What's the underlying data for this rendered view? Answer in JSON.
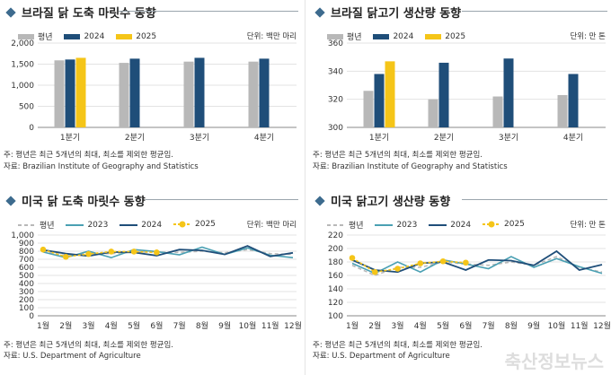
{
  "panels": [
    {
      "title": "브라질 닭 도축 마릿수 동향",
      "unit": "단위: 백만 마리",
      "legend": [
        "평년",
        "2024",
        "2025"
      ],
      "note1": "주: 평년은 최근 5개년의 최대, 최소를 제외한 평균임.",
      "note2": "자료: Brazilian Institute of Geography and Statistics"
    },
    {
      "title": "브라질 닭고기 생산량 동향",
      "unit": "단위: 만 톤",
      "legend": [
        "평년",
        "2024",
        "2025"
      ],
      "note1": "주: 평년은 최근 5개년의 최대, 최소를 제외한 평균임.",
      "note2": "자료: Brazilian Institute of Geography and Statistics"
    },
    {
      "title": "미국 닭 도축 마릿수 동향",
      "unit": "단위: 백만 마리",
      "legend": [
        "평년",
        "2023",
        "2024",
        "2025"
      ],
      "note1": "주: 평년은 최근 5개년의 최대, 최소를 제외한 평균임.",
      "note2": "자료: U.S. Department of Agriculture"
    },
    {
      "title": "미국 닭고기 생산량 동향",
      "unit": "단위: 만 톤",
      "legend": [
        "평년",
        "2023",
        "2024",
        "2025"
      ],
      "note1": "주: 평년은 최근 5개년의 최대, 최소를 제외한 평균임.",
      "note2": "자료: U.S. Department of Agriculture"
    }
  ],
  "watermark": "축산정보뉴스",
  "colors": {
    "normal": "#b8b8b8",
    "y2024": "#1f4e79",
    "y2025": "#f5c518",
    "y2023": "#4aa0b3",
    "title_marker": "#3d6b8e"
  },
  "chart_data": [
    {
      "type": "bar",
      "categories": [
        "1분기",
        "2분기",
        "3분기",
        "4분기"
      ],
      "ylim": [
        0,
        2000
      ],
      "yticks": [
        "0",
        "500",
        "1,000",
        "1,500",
        "2,000"
      ],
      "series": [
        {
          "name": "평년",
          "values": [
            1590,
            1530,
            1560,
            1560
          ]
        },
        {
          "name": "2024",
          "values": [
            1610,
            1630,
            1650,
            1630
          ]
        },
        {
          "name": "2025",
          "values": [
            1650,
            null,
            null,
            null
          ]
        }
      ]
    },
    {
      "type": "bar",
      "categories": [
        "1분기",
        "2분기",
        "3분기",
        "4분기"
      ],
      "ylim": [
        300,
        360
      ],
      "yticks": [
        "300",
        "320",
        "340",
        "360"
      ],
      "series": [
        {
          "name": "평년",
          "values": [
            326,
            320,
            322,
            323
          ]
        },
        {
          "name": "2024",
          "values": [
            338,
            346,
            349,
            338
          ]
        },
        {
          "name": "2025",
          "values": [
            347,
            null,
            null,
            null
          ]
        }
      ]
    },
    {
      "type": "line",
      "categories": [
        "1월",
        "2월",
        "3월",
        "4월",
        "5월",
        "6월",
        "7월",
        "8월",
        "9월",
        "10월",
        "11월",
        "12월"
      ],
      "ylim": [
        0,
        1000
      ],
      "yticks": [
        "0",
        "100",
        "200",
        "300",
        "400",
        "500",
        "600",
        "700",
        "800",
        "900",
        "1,000"
      ],
      "series": [
        {
          "name": "평년",
          "values": [
            795,
            745,
            770,
            770,
            790,
            790,
            785,
            800,
            780,
            820,
            770,
            760
          ]
        },
        {
          "name": "2023",
          "values": [
            790,
            720,
            800,
            720,
            820,
            795,
            755,
            850,
            760,
            840,
            750,
            720
          ]
        },
        {
          "name": "2024",
          "values": [
            815,
            770,
            740,
            790,
            785,
            745,
            820,
            810,
            760,
            865,
            735,
            780
          ]
        },
        {
          "name": "2025",
          "values": [
            820,
            730,
            765,
            795,
            795,
            785,
            null,
            null,
            null,
            null,
            null,
            null
          ]
        }
      ]
    },
    {
      "type": "line",
      "categories": [
        "1월",
        "2월",
        "3월",
        "4월",
        "5월",
        "6월",
        "7월",
        "8월",
        "9월",
        "10월",
        "11월",
        "12월"
      ],
      "ylim": [
        100,
        220
      ],
      "yticks": [
        "100",
        "120",
        "140",
        "160",
        "180",
        "200",
        "220"
      ],
      "series": [
        {
          "name": "평년",
          "values": [
            175,
            160,
            172,
            172,
            180,
            177,
            175,
            180,
            175,
            188,
            172,
            165
          ]
        },
        {
          "name": "2023",
          "values": [
            178,
            163,
            180,
            165,
            183,
            177,
            170,
            188,
            172,
            185,
            173,
            163
          ]
        },
        {
          "name": "2024",
          "values": [
            183,
            168,
            165,
            178,
            180,
            168,
            183,
            182,
            175,
            196,
            168,
            176
          ]
        },
        {
          "name": "2025",
          "values": [
            186,
            165,
            170,
            178,
            181,
            179,
            null,
            null,
            null,
            null,
            null,
            null
          ]
        }
      ]
    }
  ]
}
